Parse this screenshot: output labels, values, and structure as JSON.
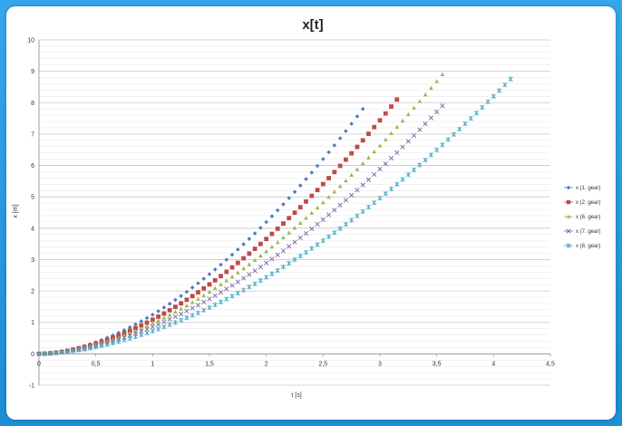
{
  "chart_data": {
    "type": "scatter",
    "title": "x[t]",
    "xlabel": "t [s]",
    "ylabel": "x [m]",
    "xlim": [
      0,
      4.5
    ],
    "ylim": [
      -1,
      10
    ],
    "xticks": [
      "0",
      "0,5",
      "1",
      "1,5",
      "2",
      "2,5",
      "3",
      "3,5",
      "4",
      "4,5"
    ],
    "yticks": [
      "-1",
      "0",
      "1",
      "2",
      "3",
      "4",
      "5",
      "6",
      "7",
      "8",
      "9",
      "10"
    ],
    "grid": true,
    "legend_position": "right",
    "series": [
      {
        "name": "x (1. gear)",
        "color": "#4a7ebb",
        "marker": "diamond",
        "t_end": 2.85,
        "x_end": 7.8
      },
      {
        "name": "x (2. gear)",
        "color": "#be4b48",
        "marker": "square",
        "t_end": 3.15,
        "x_end": 8.1
      },
      {
        "name": "x (6. gear)",
        "color": "#98b954",
        "marker": "triangle",
        "t_end": 3.55,
        "x_end": 8.9
      },
      {
        "name": "x (7. gear)",
        "color": "#7d60a0",
        "marker": "x",
        "t_end": 3.55,
        "x_end": 7.9
      },
      {
        "name": "x (8. gear)",
        "color": "#46aac5",
        "marker": "star",
        "t_end": 4.15,
        "x_end": 8.75
      }
    ]
  }
}
